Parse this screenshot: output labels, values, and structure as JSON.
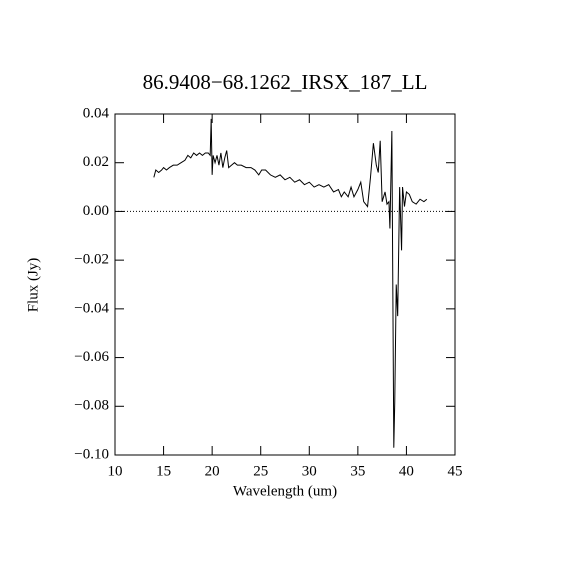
{
  "chart_data": {
    "type": "line",
    "title": "86.9408−68.1262_IRSX_187_LL",
    "x_label": "Wavelength (um)",
    "y_label": "Flux (Jy)",
    "x": [
      14.0,
      14.2,
      14.5,
      14.8,
      15.0,
      15.3,
      15.6,
      16.0,
      16.4,
      16.8,
      17.2,
      17.5,
      17.8,
      18.1,
      18.4,
      18.7,
      19.0,
      19.3,
      19.6,
      19.8,
      19.9,
      20.0,
      20.1,
      20.3,
      20.5,
      20.7,
      20.9,
      21.1,
      21.3,
      21.5,
      21.7,
      22.0,
      22.3,
      22.6,
      23.0,
      23.5,
      24.0,
      24.4,
      24.8,
      25.1,
      25.5,
      26.0,
      26.5,
      27.0,
      27.5,
      28.0,
      28.5,
      29.0,
      29.5,
      30.0,
      30.5,
      31.0,
      31.5,
      32.0,
      32.5,
      33.0,
      33.3,
      33.6,
      34.0,
      34.3,
      34.6,
      35.0,
      35.3,
      35.6,
      36.0,
      36.3,
      36.6,
      36.9,
      37.1,
      37.3,
      37.5,
      37.8,
      38.0,
      38.2,
      38.3,
      38.5,
      38.7,
      38.8,
      38.95,
      39.1,
      39.3,
      39.5,
      39.6,
      39.8,
      40.0,
      40.3,
      40.6,
      41.0,
      41.4,
      41.8,
      42.1
    ],
    "series": [
      {
        "color": "#000000",
        "values": [
          0.014,
          0.017,
          0.016,
          0.017,
          0.018,
          0.017,
          0.018,
          0.019,
          0.019,
          0.02,
          0.021,
          0.023,
          0.022,
          0.024,
          0.023,
          0.024,
          0.023,
          0.024,
          0.024,
          0.023,
          0.038,
          0.015,
          0.023,
          0.02,
          0.023,
          0.019,
          0.024,
          0.018,
          0.022,
          0.025,
          0.018,
          0.019,
          0.02,
          0.019,
          0.019,
          0.018,
          0.018,
          0.017,
          0.015,
          0.017,
          0.017,
          0.015,
          0.014,
          0.015,
          0.013,
          0.014,
          0.012,
          0.013,
          0.011,
          0.012,
          0.01,
          0.011,
          0.01,
          0.011,
          0.008,
          0.009,
          0.006,
          0.008,
          0.006,
          0.01,
          0.006,
          0.009,
          0.012,
          0.004,
          0.002,
          0.014,
          0.028,
          0.019,
          0.016,
          0.029,
          0.004,
          0.008,
          0.003,
          0.004,
          -0.007,
          0.033,
          -0.097,
          -0.078,
          -0.03,
          -0.043,
          0.01,
          -0.016,
          0.01,
          0.002,
          0.008,
          0.007,
          0.004,
          0.003,
          0.005,
          0.004,
          0.005
        ]
      }
    ],
    "xlim": [
      10,
      45
    ],
    "xticks": [
      10,
      15,
      20,
      25,
      30,
      35,
      40,
      45
    ],
    "ylim": [
      -0.1,
      0.04
    ],
    "yticks": [
      {
        "value": -0.1,
        "label": "−0.10"
      },
      {
        "value": -0.08,
        "label": "−0.08"
      },
      {
        "value": -0.06,
        "label": "−0.06"
      },
      {
        "value": -0.04,
        "label": "−0.04"
      },
      {
        "value": -0.02,
        "label": "−0.02"
      },
      {
        "value": 0,
        "label": "0.00"
      },
      {
        "value": 0.02,
        "label": "0.02"
      },
      {
        "value": 0.04,
        "label": "0.04"
      }
    ],
    "hline": 0
  }
}
